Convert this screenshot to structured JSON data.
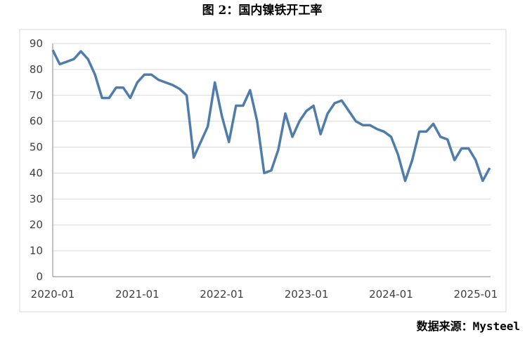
{
  "chart_data": {
    "type": "line",
    "title": "图 2：国内镍铁开工率",
    "source": "数据来源：Mysteel",
    "categories": [
      "2020-01",
      null,
      null,
      null,
      null,
      null,
      null,
      null,
      null,
      null,
      null,
      null,
      "2021-01",
      null,
      null,
      null,
      null,
      null,
      null,
      null,
      null,
      null,
      null,
      null,
      "2022-01",
      null,
      null,
      null,
      null,
      null,
      null,
      null,
      null,
      null,
      null,
      null,
      "2023-01",
      null,
      null,
      null,
      null,
      null,
      null,
      null,
      null,
      null,
      null,
      null,
      "2024-01",
      null,
      null,
      null,
      null,
      null,
      null,
      null,
      null,
      null,
      null,
      null,
      "2025-01",
      null,
      null
    ],
    "series": [
      {
        "name": "开工率",
        "color": "#4f7cab",
        "values": [
          87.5,
          82,
          83,
          84,
          87,
          84,
          78,
          69,
          69,
          73,
          73,
          69,
          75,
          78,
          78,
          76,
          75,
          74,
          72.5,
          70,
          46,
          52,
          58,
          75,
          62,
          52,
          66,
          66,
          72,
          60,
          40,
          41,
          49,
          63,
          54,
          60,
          64,
          66,
          55,
          63,
          67,
          68,
          64,
          60,
          58.5,
          58.5,
          57,
          56,
          54,
          47,
          37,
          45,
          56,
          56,
          59,
          54,
          53,
          45,
          49.5,
          49.5,
          45,
          37,
          42
        ]
      }
    ],
    "ylim": [
      0,
      90
    ],
    "yticks": [
      0,
      10,
      20,
      30,
      40,
      50,
      60,
      70,
      80,
      90
    ],
    "grid": true
  }
}
